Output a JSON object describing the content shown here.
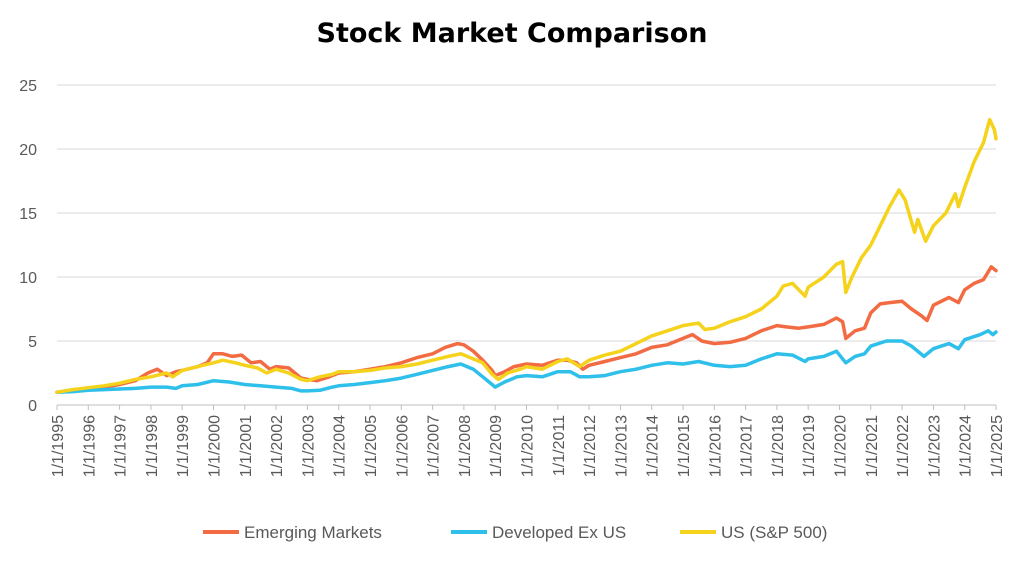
{
  "chart_data": {
    "type": "line",
    "title": "Stock Market Comparison",
    "xlabel": "",
    "ylabel": "",
    "ylim": [
      0,
      25
    ],
    "yticks": [
      0,
      5,
      10,
      15,
      20,
      25
    ],
    "xlim": [
      1995,
      2025
    ],
    "x_tick_labels": [
      "1/1/1995",
      "1/1/1996",
      "1/1/1997",
      "1/1/1998",
      "1/1/1999",
      "1/1/2000",
      "1/1/2001",
      "1/1/2002",
      "1/1/2003",
      "1/1/2004",
      "1/1/2005",
      "1/1/2006",
      "1/1/2007",
      "1/1/2008",
      "1/1/2009",
      "1/1/2010",
      "1/1/2011",
      "1/1/2012",
      "1/1/2013",
      "1/1/2014",
      "1/1/2015",
      "1/1/2016",
      "1/1/2017",
      "1/1/2018",
      "1/1/2019",
      "1/1/2020",
      "1/1/2021",
      "1/1/2022",
      "1/1/2023",
      "1/1/2024",
      "1/1/2025"
    ],
    "grid": "horizontal",
    "legend": "bottom",
    "series": [
      {
        "name": "Emerging Markets",
        "color": "#F26B43",
        "points": [
          [
            1995,
            1.0
          ],
          [
            1995.5,
            1.15
          ],
          [
            1996,
            1.25
          ],
          [
            1996.5,
            1.4
          ],
          [
            1997,
            1.6
          ],
          [
            1997.5,
            1.9
          ],
          [
            1997.9,
            2.5
          ],
          [
            1998.2,
            2.8
          ],
          [
            1998.5,
            2.3
          ],
          [
            1998.8,
            2.6
          ],
          [
            1999,
            2.7
          ],
          [
            1999.5,
            3.0
          ],
          [
            1999.8,
            3.3
          ],
          [
            2000,
            4.0
          ],
          [
            2000.3,
            4.0
          ],
          [
            2000.6,
            3.8
          ],
          [
            2000.9,
            3.9
          ],
          [
            2001.2,
            3.3
          ],
          [
            2001.5,
            3.4
          ],
          [
            2001.8,
            2.8
          ],
          [
            2002,
            3.0
          ],
          [
            2002.4,
            2.9
          ],
          [
            2002.8,
            2.1
          ],
          [
            2003,
            2.0
          ],
          [
            2003.3,
            1.9
          ],
          [
            2003.7,
            2.2
          ],
          [
            2004,
            2.5
          ],
          [
            2004.5,
            2.6
          ],
          [
            2005,
            2.8
          ],
          [
            2005.5,
            3.0
          ],
          [
            2006,
            3.3
          ],
          [
            2006.5,
            3.7
          ],
          [
            2007,
            4.0
          ],
          [
            2007.4,
            4.5
          ],
          [
            2007.8,
            4.8
          ],
          [
            2008,
            4.7
          ],
          [
            2008.3,
            4.2
          ],
          [
            2008.6,
            3.5
          ],
          [
            2008.9,
            2.7
          ],
          [
            2009,
            2.3
          ],
          [
            2009.3,
            2.6
          ],
          [
            2009.6,
            3.0
          ],
          [
            2010,
            3.2
          ],
          [
            2010.5,
            3.1
          ],
          [
            2011,
            3.5
          ],
          [
            2011.3,
            3.5
          ],
          [
            2011.6,
            3.3
          ],
          [
            2011.8,
            2.8
          ],
          [
            2012,
            3.1
          ],
          [
            2012.5,
            3.4
          ],
          [
            2013,
            3.7
          ],
          [
            2013.5,
            4.0
          ],
          [
            2014,
            4.5
          ],
          [
            2014.5,
            4.7
          ],
          [
            2015,
            5.2
          ],
          [
            2015.3,
            5.5
          ],
          [
            2015.6,
            5.0
          ],
          [
            2016,
            4.8
          ],
          [
            2016.5,
            4.9
          ],
          [
            2017,
            5.2
          ],
          [
            2017.5,
            5.8
          ],
          [
            2018,
            6.2
          ],
          [
            2018.3,
            6.1
          ],
          [
            2018.7,
            6.0
          ],
          [
            2019,
            6.1
          ],
          [
            2019.5,
            6.3
          ],
          [
            2019.9,
            6.8
          ],
          [
            2020.1,
            6.5
          ],
          [
            2020.2,
            5.2
          ],
          [
            2020.5,
            5.8
          ],
          [
            2020.8,
            6.0
          ],
          [
            2021,
            7.2
          ],
          [
            2021.3,
            7.9
          ],
          [
            2021.6,
            8.0
          ],
          [
            2022,
            8.1
          ],
          [
            2022.3,
            7.5
          ],
          [
            2022.6,
            7.0
          ],
          [
            2022.8,
            6.6
          ],
          [
            2023,
            7.8
          ],
          [
            2023.5,
            8.4
          ],
          [
            2023.8,
            8.0
          ],
          [
            2024,
            9.0
          ],
          [
            2024.3,
            9.5
          ],
          [
            2024.6,
            9.8
          ],
          [
            2024.85,
            10.8
          ],
          [
            2025,
            10.5
          ]
        ]
      },
      {
        "name": "Developed Ex US",
        "color": "#2EBFEA",
        "points": [
          [
            1995,
            1.0
          ],
          [
            1995.5,
            1.05
          ],
          [
            1996,
            1.15
          ],
          [
            1996.5,
            1.2
          ],
          [
            1997,
            1.25
          ],
          [
            1997.5,
            1.3
          ],
          [
            1998,
            1.4
          ],
          [
            1998.5,
            1.4
          ],
          [
            1998.8,
            1.3
          ],
          [
            1999,
            1.5
          ],
          [
            1999.5,
            1.6
          ],
          [
            2000,
            1.9
          ],
          [
            2000.5,
            1.8
          ],
          [
            2001,
            1.6
          ],
          [
            2001.5,
            1.5
          ],
          [
            2002,
            1.4
          ],
          [
            2002.5,
            1.3
          ],
          [
            2002.8,
            1.1
          ],
          [
            2003,
            1.1
          ],
          [
            2003.4,
            1.15
          ],
          [
            2003.8,
            1.4
          ],
          [
            2004,
            1.5
          ],
          [
            2004.5,
            1.6
          ],
          [
            2005,
            1.75
          ],
          [
            2005.5,
            1.9
          ],
          [
            2006,
            2.1
          ],
          [
            2006.5,
            2.4
          ],
          [
            2007,
            2.7
          ],
          [
            2007.5,
            3.0
          ],
          [
            2007.9,
            3.2
          ],
          [
            2008.3,
            2.8
          ],
          [
            2008.6,
            2.2
          ],
          [
            2008.9,
            1.6
          ],
          [
            2009,
            1.4
          ],
          [
            2009.3,
            1.8
          ],
          [
            2009.7,
            2.2
          ],
          [
            2010,
            2.3
          ],
          [
            2010.5,
            2.2
          ],
          [
            2011,
            2.6
          ],
          [
            2011.4,
            2.6
          ],
          [
            2011.7,
            2.2
          ],
          [
            2012,
            2.2
          ],
          [
            2012.5,
            2.3
          ],
          [
            2013,
            2.6
          ],
          [
            2013.5,
            2.8
          ],
          [
            2014,
            3.1
          ],
          [
            2014.5,
            3.3
          ],
          [
            2015,
            3.2
          ],
          [
            2015.5,
            3.4
          ],
          [
            2016,
            3.1
          ],
          [
            2016.5,
            3.0
          ],
          [
            2017,
            3.1
          ],
          [
            2017.5,
            3.6
          ],
          [
            2018,
            4.0
          ],
          [
            2018.5,
            3.9
          ],
          [
            2018.9,
            3.4
          ],
          [
            2019,
            3.6
          ],
          [
            2019.5,
            3.8
          ],
          [
            2019.9,
            4.2
          ],
          [
            2020.2,
            3.3
          ],
          [
            2020.5,
            3.8
          ],
          [
            2020.8,
            4.0
          ],
          [
            2021,
            4.6
          ],
          [
            2021.5,
            5.0
          ],
          [
            2022,
            5.0
          ],
          [
            2022.3,
            4.6
          ],
          [
            2022.7,
            3.8
          ],
          [
            2023,
            4.4
          ],
          [
            2023.5,
            4.8
          ],
          [
            2023.8,
            4.4
          ],
          [
            2024,
            5.1
          ],
          [
            2024.5,
            5.5
          ],
          [
            2024.75,
            5.8
          ],
          [
            2024.9,
            5.5
          ],
          [
            2025,
            5.7
          ]
        ]
      },
      {
        "name": "US (S&P 500)",
        "color": "#F5D21C",
        "points": [
          [
            1995,
            1.0
          ],
          [
            1995.5,
            1.2
          ],
          [
            1996,
            1.35
          ],
          [
            1996.5,
            1.5
          ],
          [
            1997,
            1.7
          ],
          [
            1997.5,
            2.0
          ],
          [
            1998,
            2.2
          ],
          [
            1998.5,
            2.5
          ],
          [
            1998.7,
            2.2
          ],
          [
            1999,
            2.7
          ],
          [
            1999.5,
            3.0
          ],
          [
            2000,
            3.3
          ],
          [
            2000.3,
            3.5
          ],
          [
            2000.7,
            3.3
          ],
          [
            2001,
            3.1
          ],
          [
            2001.4,
            2.9
          ],
          [
            2001.7,
            2.5
          ],
          [
            2002,
            2.8
          ],
          [
            2002.4,
            2.5
          ],
          [
            2002.8,
            2.0
          ],
          [
            2003,
            1.9
          ],
          [
            2003.4,
            2.2
          ],
          [
            2003.8,
            2.4
          ],
          [
            2004,
            2.6
          ],
          [
            2004.5,
            2.6
          ],
          [
            2005,
            2.7
          ],
          [
            2005.5,
            2.9
          ],
          [
            2006,
            3.0
          ],
          [
            2006.5,
            3.2
          ],
          [
            2007,
            3.5
          ],
          [
            2007.5,
            3.8
          ],
          [
            2007.9,
            4.0
          ],
          [
            2008.3,
            3.6
          ],
          [
            2008.6,
            3.3
          ],
          [
            2008.9,
            2.4
          ],
          [
            2009.1,
            2.0
          ],
          [
            2009.4,
            2.5
          ],
          [
            2009.8,
            2.8
          ],
          [
            2010,
            3.0
          ],
          [
            2010.5,
            2.8
          ],
          [
            2011,
            3.4
          ],
          [
            2011.3,
            3.6
          ],
          [
            2011.7,
            3.0
          ],
          [
            2012,
            3.5
          ],
          [
            2012.5,
            3.9
          ],
          [
            2013,
            4.2
          ],
          [
            2013.5,
            4.8
          ],
          [
            2014,
            5.4
          ],
          [
            2014.5,
            5.8
          ],
          [
            2015,
            6.2
          ],
          [
            2015.5,
            6.4
          ],
          [
            2015.7,
            5.9
          ],
          [
            2016,
            6.0
          ],
          [
            2016.5,
            6.5
          ],
          [
            2017,
            6.9
          ],
          [
            2017.5,
            7.5
          ],
          [
            2018,
            8.5
          ],
          [
            2018.2,
            9.3
          ],
          [
            2018.5,
            9.5
          ],
          [
            2018.9,
            8.5
          ],
          [
            2019,
            9.2
          ],
          [
            2019.5,
            10.0
          ],
          [
            2019.9,
            11.0
          ],
          [
            2020.1,
            11.2
          ],
          [
            2020.2,
            8.8
          ],
          [
            2020.4,
            10.0
          ],
          [
            2020.7,
            11.5
          ],
          [
            2021,
            12.5
          ],
          [
            2021.3,
            14.0
          ],
          [
            2021.6,
            15.5
          ],
          [
            2021.9,
            16.8
          ],
          [
            2022.1,
            16.0
          ],
          [
            2022.4,
            13.5
          ],
          [
            2022.5,
            14.5
          ],
          [
            2022.75,
            12.8
          ],
          [
            2023,
            14.0
          ],
          [
            2023.4,
            15.0
          ],
          [
            2023.7,
            16.5
          ],
          [
            2023.8,
            15.5
          ],
          [
            2024,
            17.0
          ],
          [
            2024.3,
            19.0
          ],
          [
            2024.6,
            20.5
          ],
          [
            2024.8,
            22.3
          ],
          [
            2024.95,
            21.5
          ],
          [
            2025,
            20.8
          ]
        ]
      }
    ]
  }
}
